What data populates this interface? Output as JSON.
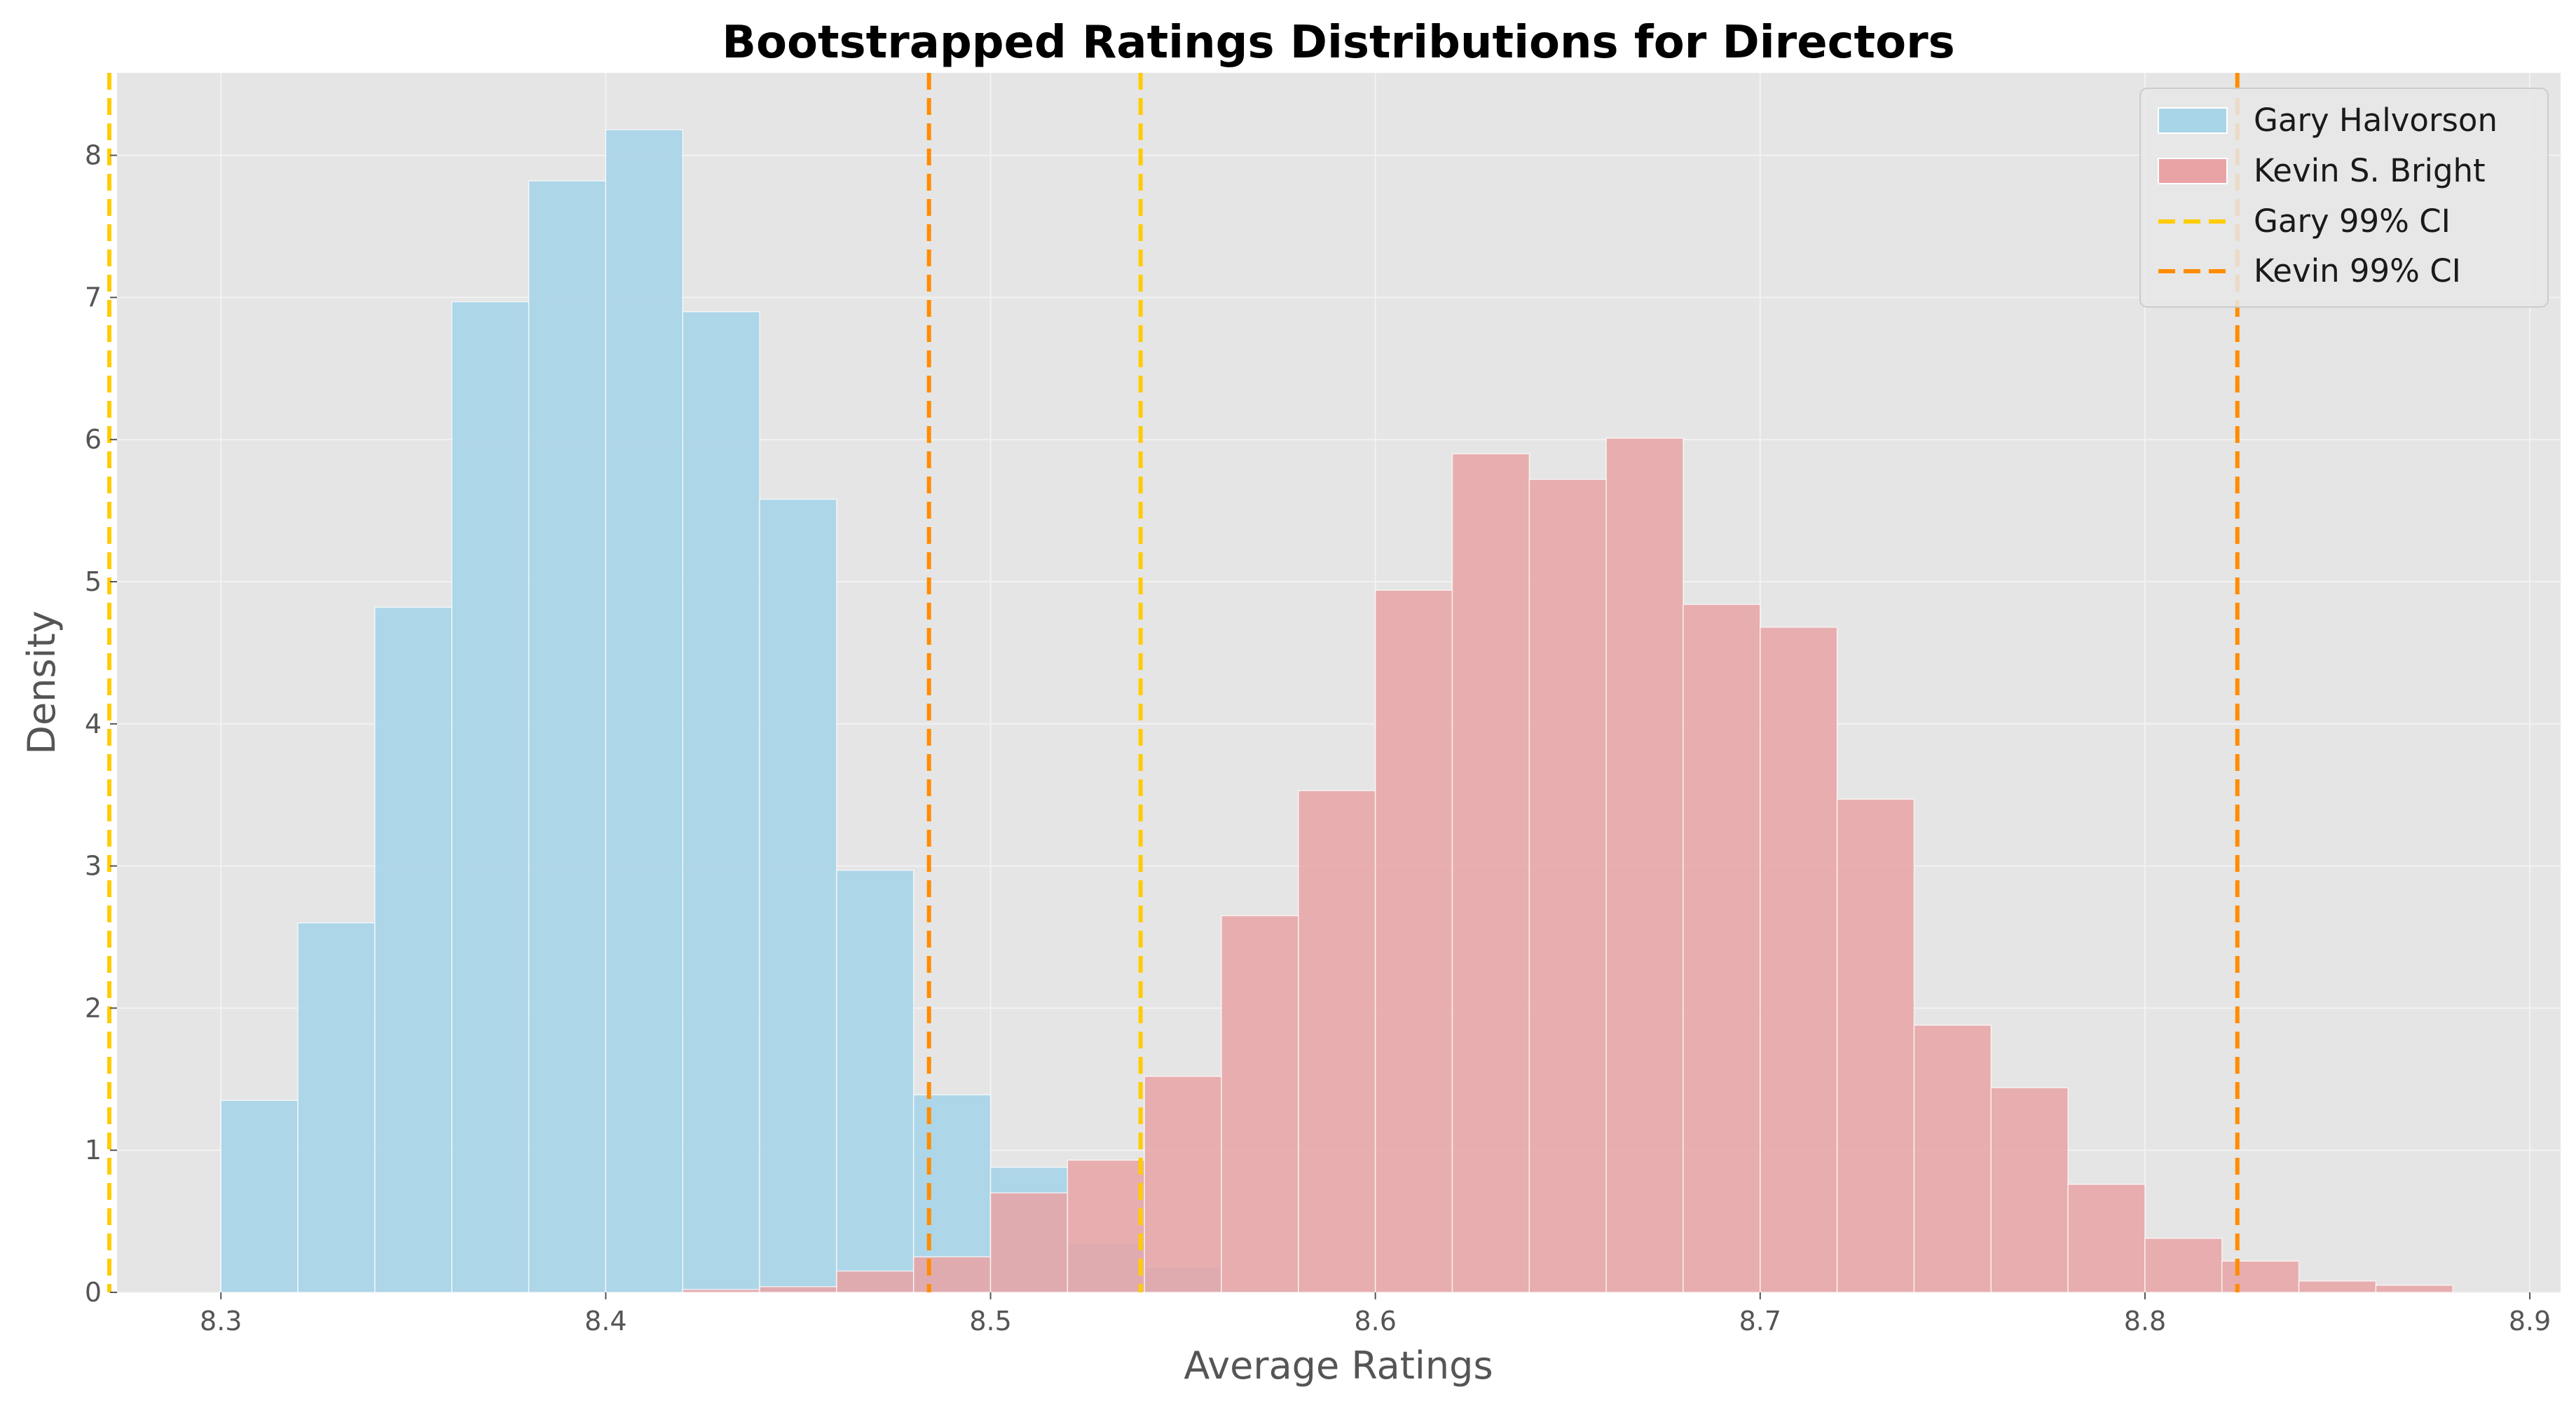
{
  "chart_data": {
    "type": "histogram",
    "title": "Bootstrapped Ratings Distributions for Directors",
    "xlabel": "Average Ratings",
    "ylabel": "Density",
    "xlim": [
      8.273,
      8.908
    ],
    "ylim": [
      0,
      8.58
    ],
    "xticks": [
      8.3,
      8.4,
      8.5,
      8.6,
      8.7,
      8.8,
      8.9
    ],
    "xtick_labels": [
      "8.3",
      "8.4",
      "8.5",
      "8.6",
      "8.7",
      "8.8",
      "8.9"
    ],
    "yticks": [
      0,
      1,
      2,
      3,
      4,
      5,
      6,
      7,
      8
    ],
    "ytick_labels": [
      "0",
      "1",
      "2",
      "3",
      "4",
      "5",
      "6",
      "7",
      "8"
    ],
    "grid": true,
    "background": "#e5e5e5",
    "legend_position": "top-right",
    "bin_width": 0.02,
    "series": [
      {
        "name": "Gary Halvorson",
        "color": "#a8d5e8",
        "bin_start": 8.3,
        "values": [
          1.35,
          2.6,
          4.82,
          6.97,
          7.82,
          8.18,
          6.9,
          5.58,
          2.97,
          1.39,
          0.88,
          0.35,
          0.18,
          0.02,
          0,
          0
        ]
      },
      {
        "name": "Kevin S. Bright",
        "color": "#e9a3a4",
        "bin_start": 8.42,
        "values": [
          0.02,
          0.04,
          0.15,
          0.25,
          0.7,
          0.93,
          1.52,
          2.65,
          3.53,
          4.94,
          5.9,
          5.72,
          6.01,
          4.84,
          4.68,
          3.47,
          1.88,
          1.44,
          0.76,
          0.38,
          0.22,
          0.08,
          0.05
        ]
      }
    ],
    "ci_lines": [
      {
        "name": "Gary 99% CI",
        "color": "#ffcc00",
        "x": [
          8.271,
          8.539
        ]
      },
      {
        "name": "Kevin 99% CI",
        "color": "#ff8c00",
        "x": [
          8.484,
          8.824
        ]
      }
    ]
  }
}
